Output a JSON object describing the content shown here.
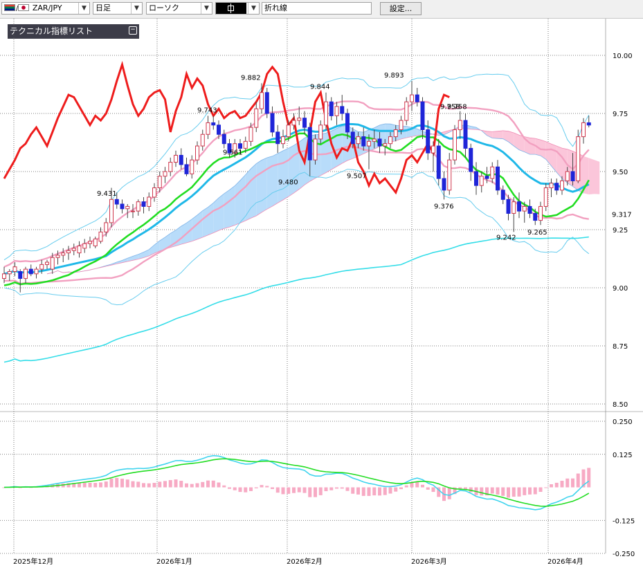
{
  "toolbar": {
    "symbol": "ZAR/JPY",
    "timeframe": "日足",
    "chart_style": "ローソク",
    "line_style": "折れ線",
    "settings_button": "設定..."
  },
  "indicator_panel": {
    "title": "テクニカル指標リスト",
    "toggle": "−"
  },
  "colors": {
    "up_candle": "#ffffff",
    "up_candle_border": "#d0354b",
    "down_candle": "#1f25d8",
    "boll_outer": "#66ccee",
    "boll_inner": "#f2a0c0",
    "ma_short": "#1fb8e8",
    "ma_mid": "#22dd22",
    "ma_long": "#33dde8",
    "lagging_span": "#ee1c1c",
    "cloud_blue": "#b8dcfa",
    "cloud_pink": "#fbc6da",
    "macd_line": "#40d4ee",
    "signal_line": "#22dd22",
    "histogram": "#f7aac4"
  },
  "chart_data": [
    {
      "type": "candlestick",
      "title": "",
      "y_axis": {
        "min": 8.5,
        "max": 10.0,
        "ticks": [
          "10.00",
          "9.75",
          "9.50",
          "9.25",
          "9.00",
          "8.75",
          "8.50"
        ]
      },
      "x_labels": [
        "2025年12月",
        "2026年1月",
        "2026年2月",
        "2026年3月",
        "2026年4月"
      ],
      "price_labels": [
        {
          "value": 9.317,
          "text": "9.317",
          "position": "axis"
        },
        {
          "value": 9.431,
          "text": "9.431"
        },
        {
          "value": 9.743,
          "text": "9.743"
        },
        {
          "value": 9.882,
          "text": "9.882"
        },
        {
          "value": 9.561,
          "text": "9.561"
        },
        {
          "value": 9.844,
          "text": "9.844"
        },
        {
          "value": 9.48,
          "text": "9.480"
        },
        {
          "value": 9.507,
          "text": "9.507"
        },
        {
          "value": 9.893,
          "text": "9.893"
        },
        {
          "value": 9.758,
          "text": "9.758"
        },
        {
          "value": 9.758,
          "text": "9.758"
        },
        {
          "value": 9.376,
          "text": "9.376"
        },
        {
          "value": 9.242,
          "text": "9.242"
        },
        {
          "value": 9.265,
          "text": "9.265"
        }
      ],
      "candles": [
        [
          9.04,
          9.09,
          9.02,
          9.06
        ],
        [
          9.06,
          9.08,
          9.03,
          9.07
        ],
        [
          9.07,
          9.11,
          9.05,
          9.09
        ],
        [
          9.07,
          9.08,
          8.98,
          9.04
        ],
        [
          9.04,
          9.09,
          9.02,
          9.08
        ],
        [
          9.08,
          9.1,
          9.05,
          9.06
        ],
        [
          9.06,
          9.09,
          9.04,
          9.08
        ],
        [
          9.08,
          9.12,
          9.06,
          9.1
        ],
        [
          9.1,
          9.12,
          9.08,
          9.11
        ],
        [
          9.08,
          9.15,
          9.06,
          9.13
        ],
        [
          9.13,
          9.16,
          9.1,
          9.14
        ],
        [
          9.14,
          9.17,
          9.11,
          9.15
        ],
        [
          9.15,
          9.18,
          9.12,
          9.16
        ],
        [
          9.16,
          9.19,
          9.14,
          9.17
        ],
        [
          9.15,
          9.2,
          9.13,
          9.18
        ],
        [
          9.17,
          9.21,
          9.15,
          9.19
        ],
        [
          9.19,
          9.22,
          9.17,
          9.2
        ],
        [
          9.18,
          9.22,
          9.17,
          9.21
        ],
        [
          9.2,
          9.26,
          9.19,
          9.24
        ],
        [
          9.24,
          9.3,
          9.22,
          9.28
        ],
        [
          9.28,
          9.43,
          9.26,
          9.38
        ],
        [
          9.38,
          9.41,
          9.34,
          9.36
        ],
        [
          9.36,
          9.38,
          9.32,
          9.34
        ],
        [
          9.34,
          9.36,
          9.3,
          9.35
        ],
        [
          9.33,
          9.36,
          9.3,
          9.33
        ],
        [
          9.33,
          9.38,
          9.31,
          9.37
        ],
        [
          9.37,
          9.39,
          9.32,
          9.35
        ],
        [
          9.35,
          9.41,
          9.33,
          9.39
        ],
        [
          9.39,
          9.45,
          9.37,
          9.43
        ],
        [
          9.43,
          9.5,
          9.41,
          9.48
        ],
        [
          9.48,
          9.52,
          9.45,
          9.5
        ],
        [
          9.5,
          9.56,
          9.48,
          9.54
        ],
        [
          9.54,
          9.59,
          9.52,
          9.57
        ],
        [
          9.57,
          9.6,
          9.51,
          9.53
        ],
        [
          9.53,
          9.56,
          9.48,
          9.49
        ],
        [
          9.49,
          9.57,
          9.47,
          9.55
        ],
        [
          9.55,
          9.63,
          9.53,
          9.61
        ],
        [
          9.61,
          9.68,
          9.59,
          9.66
        ],
        [
          9.66,
          9.74,
          9.64,
          9.71
        ],
        [
          9.71,
          9.74,
          9.68,
          9.7
        ],
        [
          9.7,
          9.72,
          9.64,
          9.66
        ],
        [
          9.66,
          9.68,
          9.6,
          9.62
        ],
        [
          9.62,
          9.64,
          9.56,
          9.58
        ],
        [
          9.58,
          9.64,
          9.56,
          9.62
        ],
        [
          9.62,
          9.64,
          9.58,
          9.6
        ],
        [
          9.6,
          9.65,
          9.58,
          9.63
        ],
        [
          9.63,
          9.71,
          9.61,
          9.69
        ],
        [
          9.69,
          9.8,
          9.67,
          9.77
        ],
        [
          9.77,
          9.88,
          9.75,
          9.84
        ],
        [
          9.84,
          9.86,
          9.73,
          9.75
        ],
        [
          9.75,
          9.78,
          9.65,
          9.67
        ],
        [
          9.67,
          9.7,
          9.58,
          9.62
        ],
        [
          9.62,
          9.68,
          9.6,
          9.65
        ],
        [
          9.65,
          9.72,
          9.63,
          9.7
        ],
        [
          9.7,
          9.75,
          9.68,
          9.72
        ],
        [
          9.72,
          9.78,
          9.7,
          9.73
        ],
        [
          9.73,
          9.76,
          9.66,
          9.69
        ],
        [
          9.69,
          9.71,
          9.48,
          9.55
        ],
        [
          9.55,
          9.66,
          9.53,
          9.64
        ],
        [
          9.64,
          9.72,
          9.62,
          9.7
        ],
        [
          9.7,
          9.84,
          9.68,
          9.8
        ],
        [
          9.8,
          9.82,
          9.72,
          9.74
        ],
        [
          9.74,
          9.8,
          9.7,
          9.78
        ],
        [
          9.78,
          9.83,
          9.72,
          9.75
        ],
        [
          9.75,
          9.77,
          9.64,
          9.67
        ],
        [
          9.67,
          9.69,
          9.6,
          9.62
        ],
        [
          9.62,
          9.67,
          9.6,
          9.65
        ],
        [
          9.65,
          9.69,
          9.59,
          9.61
        ],
        [
          9.61,
          9.66,
          9.51,
          9.63
        ],
        [
          9.63,
          9.68,
          9.6,
          9.64
        ],
        [
          9.64,
          9.67,
          9.58,
          9.61
        ],
        [
          9.61,
          9.64,
          9.57,
          9.62
        ],
        [
          9.62,
          9.67,
          9.6,
          9.65
        ],
        [
          9.65,
          9.7,
          9.63,
          9.68
        ],
        [
          9.68,
          9.74,
          9.66,
          9.72
        ],
        [
          9.72,
          9.82,
          9.7,
          9.8
        ],
        [
          9.8,
          9.89,
          9.76,
          9.83
        ],
        [
          9.83,
          9.86,
          9.78,
          9.8
        ],
        [
          9.8,
          9.82,
          9.64,
          9.68
        ],
        [
          9.68,
          9.72,
          9.55,
          9.58
        ],
        [
          9.58,
          9.63,
          9.5,
          9.61
        ],
        [
          9.61,
          9.64,
          9.44,
          9.47
        ],
        [
          9.47,
          9.5,
          9.38,
          9.42
        ],
        [
          9.42,
          9.58,
          9.4,
          9.55
        ],
        [
          9.55,
          9.7,
          9.53,
          9.68
        ],
        [
          9.68,
          9.76,
          9.64,
          9.72
        ],
        [
          9.72,
          9.75,
          9.56,
          9.6
        ],
        [
          9.6,
          9.62,
          9.46,
          9.5
        ],
        [
          9.5,
          9.54,
          9.4,
          9.44
        ],
        [
          9.44,
          9.5,
          9.41,
          9.48
        ],
        [
          9.48,
          9.52,
          9.45,
          9.47
        ],
        [
          9.47,
          9.54,
          9.45,
          9.52
        ],
        [
          9.52,
          9.55,
          9.4,
          9.42
        ],
        [
          9.42,
          9.44,
          9.36,
          9.38
        ],
        [
          9.38,
          9.4,
          9.29,
          9.32
        ],
        [
          9.32,
          9.39,
          9.24,
          9.37
        ],
        [
          9.37,
          9.41,
          9.3,
          9.33
        ],
        [
          9.33,
          9.37,
          9.28,
          9.35
        ],
        [
          9.35,
          9.38,
          9.3,
          9.32
        ],
        [
          9.32,
          9.34,
          9.27,
          9.29
        ],
        [
          9.29,
          9.37,
          9.27,
          9.35
        ],
        [
          9.35,
          9.45,
          9.33,
          9.43
        ],
        [
          9.43,
          9.47,
          9.39,
          9.45
        ],
        [
          9.45,
          9.47,
          9.4,
          9.42
        ],
        [
          9.42,
          9.48,
          9.4,
          9.46
        ],
        [
          9.46,
          9.52,
          9.44,
          9.5
        ],
        [
          9.5,
          9.58,
          9.44,
          9.46
        ],
        [
          9.46,
          9.68,
          9.45,
          9.65
        ],
        [
          9.65,
          9.73,
          9.62,
          9.71
        ],
        [
          9.71,
          9.74,
          9.69,
          9.7
        ]
      ]
    },
    {
      "type": "line",
      "title": "",
      "y_axis": {
        "min": -0.25,
        "max": 0.25,
        "ticks": [
          "0.250",
          "0.125",
          "-0.125",
          "-0.250"
        ]
      },
      "series_labels": []
    }
  ]
}
